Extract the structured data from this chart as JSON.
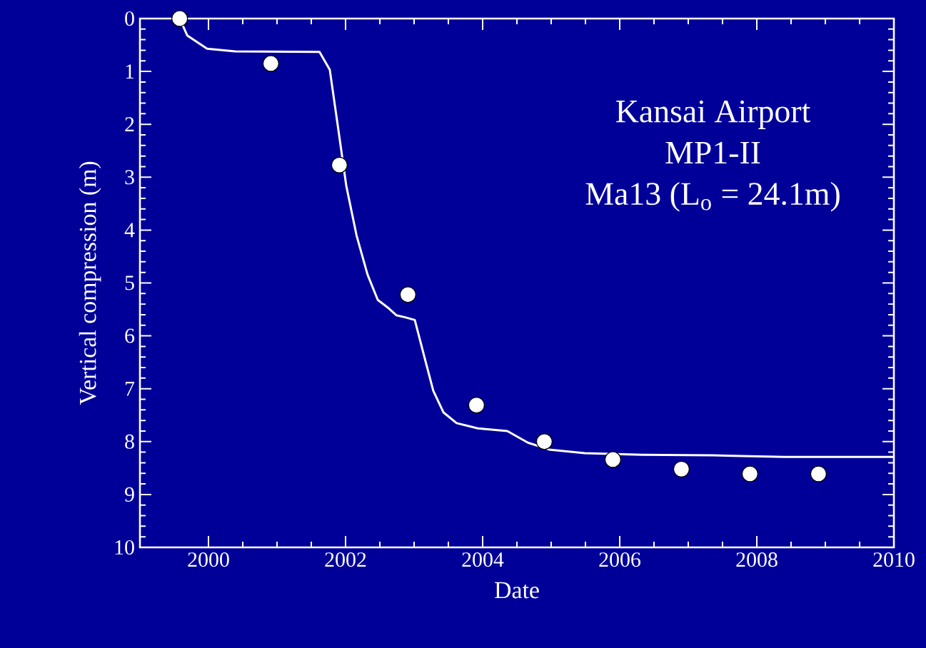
{
  "chart_data": {
    "type": "scatter",
    "xlabel": "Date",
    "ylabel": "Vertical compression (m)",
    "annotations": [
      "Kansai Airport",
      "MP1-II",
      "Ma13 (L$_{o}$ = 24.1m)"
    ],
    "series": [
      {
        "color": "#ffffff",
        "marker": "circle",
        "x": [
          1999.58,
          2000.91,
          2001.91,
          2002.91,
          2003.91,
          2004.9,
          2005.9,
          2006.9,
          2007.9,
          2008.9
        ],
        "values": [
          0.0,
          0.85,
          2.77,
          5.22,
          7.31,
          8.0,
          8.34,
          8.52,
          8.61,
          8.61
        ]
      },
      {
        "type": "line",
        "color": "#ffffff",
        "marker": "none",
        "line_style": "solid",
        "x": [
          1999.58,
          1999.69,
          1999.98,
          2000.39,
          2001.62,
          2001.77,
          2001.9,
          2002.01,
          2002.16,
          2002.32,
          2002.47,
          2002.63,
          2002.74,
          2002.87,
          2003.01,
          2003.15,
          2003.28,
          2003.43,
          2003.62,
          2003.93,
          2004.36,
          2004.66,
          2004.97,
          2005.49,
          2006.32,
          2007.36,
          2008.4,
          2010.0
        ],
        "values": [
          0.0,
          0.32,
          0.57,
          0.62,
          0.63,
          0.97,
          2.15,
          3.16,
          4.1,
          4.84,
          5.32,
          5.48,
          5.61,
          5.65,
          5.7,
          6.4,
          7.04,
          7.45,
          7.65,
          7.75,
          7.8,
          8.02,
          8.15,
          8.22,
          8.25,
          8.26,
          8.29,
          8.29
        ]
      }
    ],
    "xlim": [
      1999,
      2010
    ],
    "xticks": [
      2000,
      2002,
      2004,
      2006,
      2008,
      2010
    ],
    "ylim": [
      10,
      0
    ],
    "yticks": [
      0,
      1,
      2,
      3,
      4,
      5,
      6,
      7,
      8,
      9,
      10
    ]
  }
}
